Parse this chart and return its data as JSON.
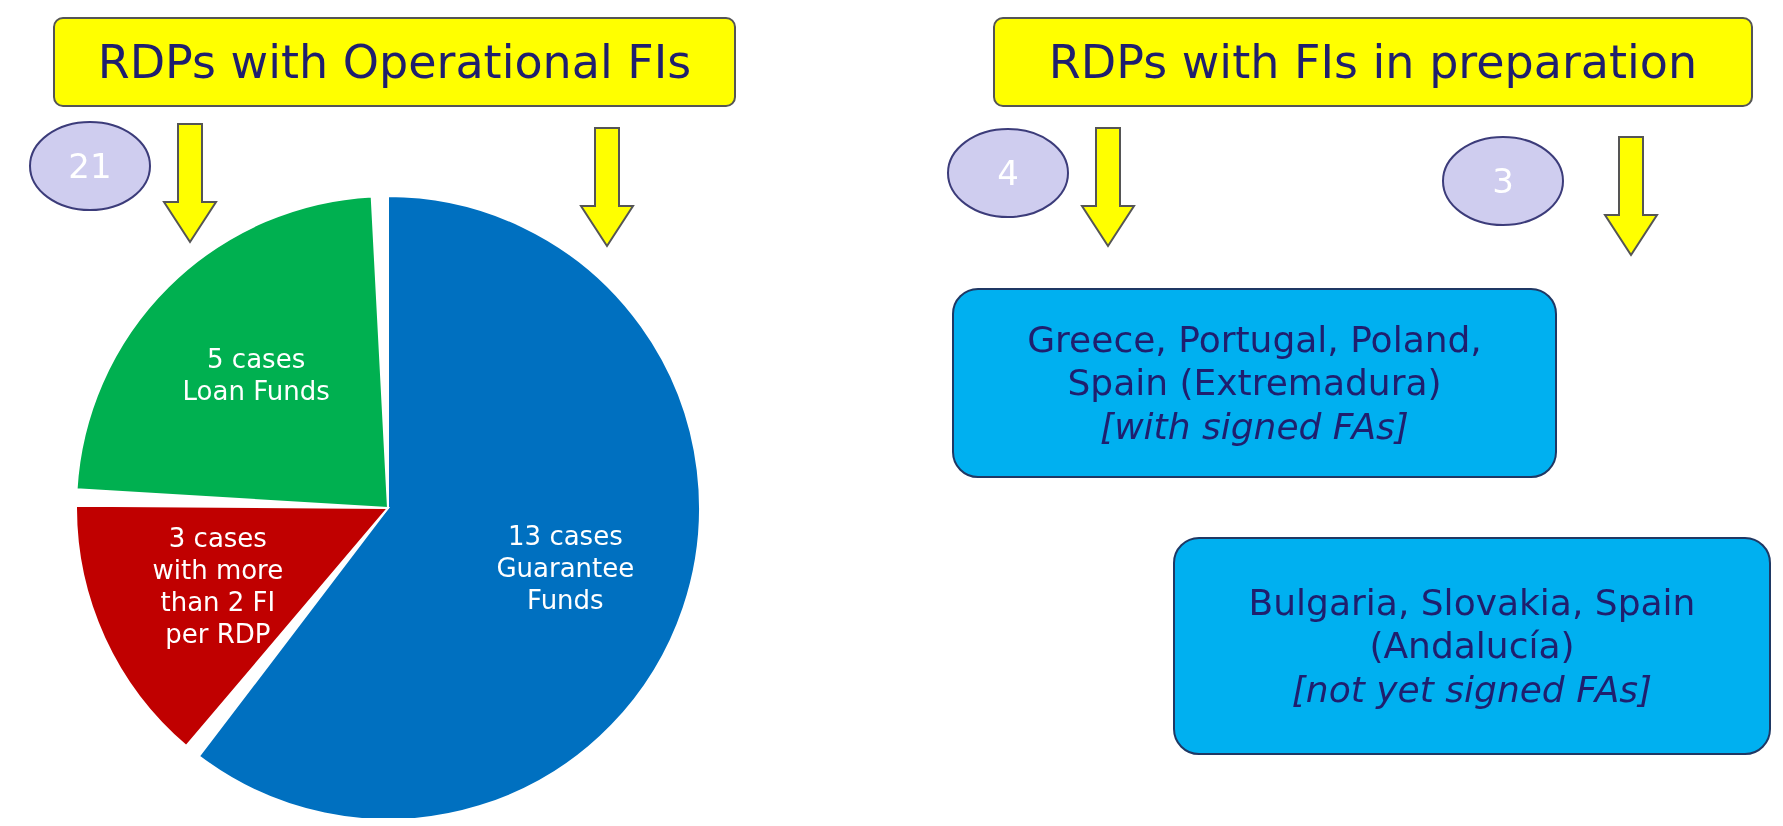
{
  "chart_data": [
    {
      "type": "pie",
      "title": "RDPs with Operational FIs",
      "categories": [
        "Guarantee Funds",
        "with more than 2 FI per RDP",
        "Loan Funds"
      ],
      "values": [
        13,
        3,
        5
      ],
      "value_labels": [
        "13 cases",
        "3 cases",
        "5 cases"
      ],
      "colors": [
        "#0070c0",
        "#c00000",
        "#00b050"
      ],
      "annotations": [
        "21"
      ]
    },
    {
      "type": "other",
      "title": "RDPs with FIs in preparation",
      "annotations": [
        "4",
        "3",
        "Greece, Portugal, Poland, Spain (Extremadura)",
        "[with signed FAs]",
        "Bulgaria, Slovakia, Spain (Andalucía)",
        "[not yet signed FAs]"
      ]
    }
  ]
}
